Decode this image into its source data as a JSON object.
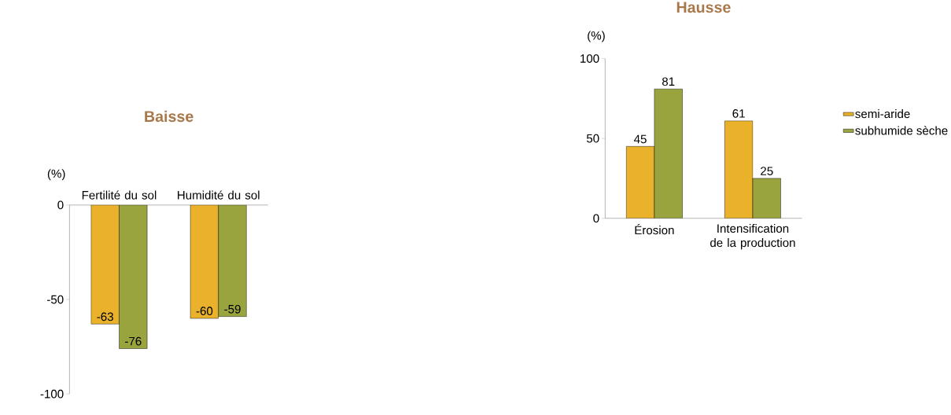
{
  "chart_data": [
    {
      "type": "bar",
      "title": "Baisse",
      "ylabel": "(%)",
      "categories": [
        "Fertilité du sol",
        "Humidité du sol"
      ],
      "series": [
        {
          "color": "#eab22a",
          "values": [
            -63,
            -60
          ]
        },
        {
          "color": "#9aa43e",
          "values": [
            -76,
            -59
          ]
        }
      ],
      "ylim": [
        -100,
        0
      ],
      "yticks": [
        -100,
        -50,
        0
      ],
      "data_labels": true,
      "legend": false
    },
    {
      "type": "bar",
      "title": "Hausse",
      "ylabel": "(%)",
      "categories": [
        "Érosion",
        "Intensification de la production"
      ],
      "series": [
        {
          "name": "semi-aride",
          "color": "#eab22a",
          "values": [
            45,
            61
          ]
        },
        {
          "name": "subhumide sèche",
          "color": "#9aa43e",
          "values": [
            81,
            25
          ]
        }
      ],
      "ylim": [
        0,
        100
      ],
      "yticks": [
        0,
        50,
        100
      ],
      "data_labels": true,
      "legend": "right"
    }
  ]
}
